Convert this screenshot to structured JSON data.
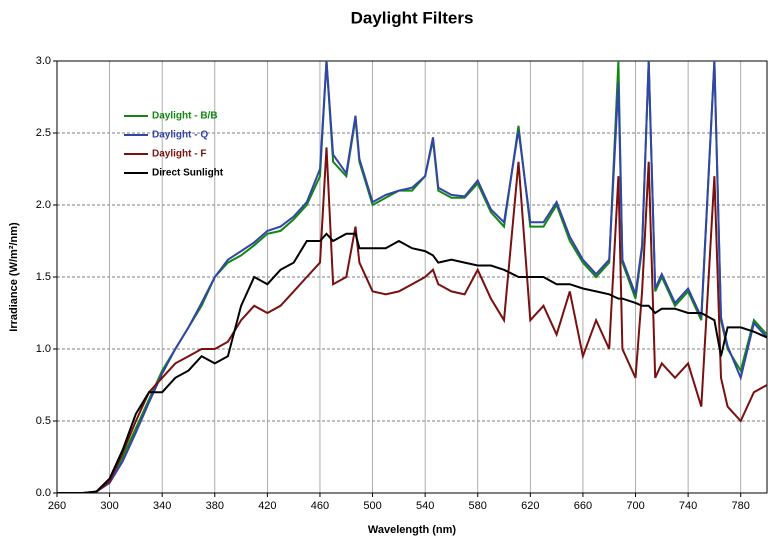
{
  "chart_data": {
    "type": "line",
    "title": "Daylight Filters",
    "x_label": "Wavelength (nm)",
    "y_label": "Irradiance (W/m²/nm)",
    "x": [
      260,
      270,
      280,
      290,
      300,
      310,
      320,
      330,
      340,
      350,
      360,
      370,
      380,
      390,
      400,
      410,
      420,
      430,
      440,
      450,
      460,
      465,
      470,
      480,
      487,
      490,
      500,
      510,
      520,
      530,
      540,
      546,
      550,
      560,
      570,
      580,
      590,
      600,
      611,
      620,
      630,
      640,
      650,
      660,
      670,
      680,
      687,
      690,
      700,
      705,
      710,
      715,
      720,
      730,
      740,
      750,
      760,
      765,
      770,
      780,
      790,
      800
    ],
    "series": [
      {
        "name": "Daylight - B/B",
        "color": "#118811",
        "values": [
          0,
          0,
          0,
          0.01,
          0.08,
          0.25,
          0.45,
          0.65,
          0.85,
          1.0,
          1.15,
          1.3,
          1.5,
          1.6,
          1.65,
          1.72,
          1.8,
          1.82,
          1.9,
          2.0,
          2.2,
          3.0,
          2.3,
          2.2,
          2.6,
          2.3,
          2.0,
          2.05,
          2.1,
          2.1,
          2.2,
          2.45,
          2.1,
          2.05,
          2.05,
          2.15,
          1.95,
          1.85,
          2.55,
          1.85,
          1.85,
          2.0,
          1.75,
          1.6,
          1.5,
          1.6,
          3.0,
          1.6,
          1.35,
          1.7,
          3.0,
          1.4,
          1.5,
          1.3,
          1.4,
          1.2,
          3.0,
          1.2,
          1.0,
          0.85,
          1.2,
          1.1
        ]
      },
      {
        "name": "Daylight - Q",
        "color": "#3344aa",
        "values": [
          0,
          0,
          0,
          0.01,
          0.07,
          0.22,
          0.42,
          0.63,
          0.83,
          1.0,
          1.15,
          1.32,
          1.5,
          1.62,
          1.68,
          1.74,
          1.82,
          1.85,
          1.92,
          2.02,
          2.25,
          3.0,
          2.35,
          2.22,
          2.62,
          2.32,
          2.02,
          2.07,
          2.1,
          2.12,
          2.2,
          2.47,
          2.12,
          2.07,
          2.06,
          2.17,
          1.97,
          1.88,
          2.52,
          1.88,
          1.88,
          2.02,
          1.78,
          1.62,
          1.52,
          1.62,
          2.85,
          1.62,
          1.38,
          1.72,
          3.0,
          1.42,
          1.52,
          1.32,
          1.42,
          1.22,
          3.0,
          1.22,
          1.02,
          0.8,
          1.18,
          1.08
        ]
      },
      {
        "name": "Daylight - F",
        "color": "#7a1010",
        "values": [
          0,
          0,
          0,
          0.01,
          0.08,
          0.28,
          0.5,
          0.7,
          0.8,
          0.9,
          0.95,
          1.0,
          1.0,
          1.05,
          1.2,
          1.3,
          1.25,
          1.3,
          1.4,
          1.5,
          1.6,
          2.4,
          1.45,
          1.5,
          1.85,
          1.6,
          1.4,
          1.38,
          1.4,
          1.45,
          1.5,
          1.55,
          1.45,
          1.4,
          1.38,
          1.55,
          1.35,
          1.2,
          2.3,
          1.2,
          1.3,
          1.1,
          1.4,
          0.95,
          1.2,
          1.0,
          2.2,
          1.0,
          0.8,
          1.4,
          2.3,
          0.8,
          0.9,
          0.8,
          0.9,
          0.6,
          2.2,
          0.8,
          0.6,
          0.5,
          0.7,
          0.75
        ]
      },
      {
        "name": "Direct Sunlight",
        "color": "#000000",
        "values": [
          0,
          0,
          0,
          0.01,
          0.1,
          0.3,
          0.55,
          0.7,
          0.7,
          0.8,
          0.85,
          0.95,
          0.9,
          0.95,
          1.3,
          1.5,
          1.45,
          1.55,
          1.6,
          1.75,
          1.75,
          1.8,
          1.75,
          1.8,
          1.8,
          1.7,
          1.7,
          1.7,
          1.75,
          1.7,
          1.68,
          1.65,
          1.6,
          1.62,
          1.6,
          1.58,
          1.58,
          1.55,
          1.5,
          1.5,
          1.5,
          1.45,
          1.45,
          1.42,
          1.4,
          1.38,
          1.35,
          1.35,
          1.32,
          1.3,
          1.3,
          1.25,
          1.28,
          1.28,
          1.25,
          1.25,
          1.2,
          0.95,
          1.15,
          1.15,
          1.12,
          1.08
        ]
      }
    ],
    "xlim": [
      260,
      800
    ],
    "xticks": [
      260,
      300,
      340,
      380,
      420,
      460,
      500,
      540,
      580,
      620,
      660,
      700,
      740,
      780
    ],
    "ylim": [
      0,
      3
    ],
    "yticks": [
      {
        "value": 0,
        "label": "0.0"
      },
      0.5,
      {
        "value": 1,
        "label": "1.0"
      },
      1.5,
      {
        "value": 2,
        "label": "2.0"
      },
      2.5,
      {
        "value": 3,
        "label": "3.0"
      }
    ],
    "grid": true,
    "legend": "upper-left"
  }
}
